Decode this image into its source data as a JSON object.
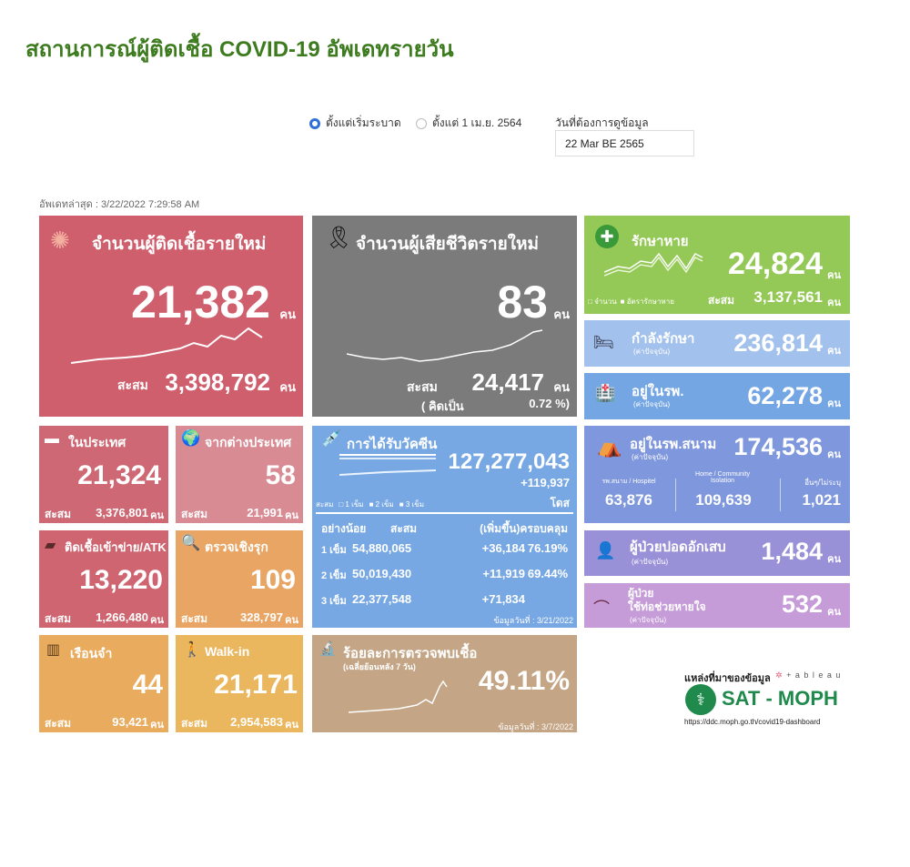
{
  "title": "สถานการณ์ผู้ติดเชื้อ COVID-19 อัพเดทรายวัน",
  "filters": {
    "radio1": "ตั้งแต่เริ่มระบาด",
    "radio2": "ตั้งแต่ 1 เม.ย. 2564",
    "radio_selected": "radio1",
    "date_label": "วันที่ต้องการดูข้อมูล",
    "date_value": "22 Mar BE 2565"
  },
  "updated": "อัพเดทล่าสุด : 3/22/2022 7:29:58 AM",
  "unit": "คน",
  "cum": "สะสม",
  "new_cases": {
    "label": "จำนวนผู้ติดเชื้อรายใหม่",
    "value": "21,382",
    "cum": "3,398,792",
    "color": "#cf5f6d"
  },
  "deaths": {
    "label": "จำนวนผู้เสียชีวิตรายใหม่",
    "value": "83",
    "cum": "24,417",
    "rate_label": "( คิดเป็น",
    "rate": "0.72 %)",
    "color": "#7b7b7b"
  },
  "domestic": {
    "label": "ในประเทศ",
    "value": "21,324",
    "cum": "3,376,801",
    "color": "#cd6874"
  },
  "abroad": {
    "label": "จากต่างประเทศ",
    "value": "58",
    "cum": "21,991",
    "color": "#d98b94"
  },
  "atk": {
    "label": "ติดเชื้อเข้าข่าย/ATK",
    "value": "13,220",
    "cum": "1,266,480",
    "color": "#cf6570"
  },
  "proactive": {
    "label": "ตรวจเชิงรุก",
    "value": "109",
    "cum": "328,797",
    "color": "#e9a563"
  },
  "prison": {
    "label": "เรือนจำ",
    "value": "44",
    "cum": "93,421",
    "color": "#e9ac5e"
  },
  "walkin": {
    "label": "Walk-in",
    "value": "21,171",
    "cum": "2,954,583",
    "color": "#eab65e"
  },
  "vaccine": {
    "label": "การได้รับวัคซีน",
    "total": "127,277,043",
    "added": "+119,937",
    "unit": "โดส",
    "legend": [
      "สะสม",
      "1 เข็ม",
      "2 เข็ม",
      "3 เข็ม"
    ],
    "headers": [
      "อย่างน้อย",
      "สะสม",
      "(เพิ่มขึ้น)",
      "ครอบคลุม"
    ],
    "rows": [
      [
        "1 เข็ม",
        "54,880,065",
        "+36,184",
        "76.19%"
      ],
      [
        "2 เข็ม",
        "50,019,430",
        "+11,919",
        "69.44%"
      ],
      [
        "3 เข็ม",
        "22,377,548",
        "+71,834",
        ""
      ]
    ],
    "date": "ข้อมูลวันที่ : 3/21/2022",
    "color": "#77a8e3"
  },
  "positivity": {
    "label": "ร้อยละการตรวจพบเชื้อ",
    "sub": "(เฉลี่ยย้อนหลัง 7 วัน)",
    "value": "49.11%",
    "date": "ข้อมูลวันที่ : 3/7/2022",
    "color": "#c4a585"
  },
  "recovered": {
    "label": "รักษาหาย",
    "value": "24,824",
    "cum": "3,137,561",
    "legend": [
      "จำนวน",
      "อัตรารักษาหาย"
    ],
    "color": "#95c957"
  },
  "treating": {
    "label": "กำลังรักษา",
    "sub": "(ค่าปัจจุบัน)",
    "value": "236,814",
    "color": "#a2c1ec"
  },
  "hospital": {
    "label": "อยู่ในรพ.",
    "sub": "(ค่าปัจจุบัน)",
    "value": "62,278",
    "color": "#74a6e3"
  },
  "field": {
    "label": "อยู่ในรพ.สนาม",
    "sub": "(ค่าปัจจุบัน)",
    "value": "174,536",
    "cols": [
      {
        "label": "รพ.สนาม / Hospitel",
        "value": "63,876"
      },
      {
        "label": "Home / Community Isolation",
        "value": "109,639"
      },
      {
        "label": "อื่นๆ/ไม่ระบุ",
        "value": "1,021"
      }
    ],
    "color": "#7f97dc"
  },
  "pneumonia": {
    "label": "ผู้ป่วยปอดอักเสบ",
    "sub": "(ค่าปัจจุบัน)",
    "value": "1,484",
    "color": "#9991d8"
  },
  "ventilator": {
    "label1": "ผู้ป่วย",
    "label2": "ใช้ท่อช่วยหายใจ",
    "sub": "(ค่าปัจจุบัน)",
    "value": "532",
    "color": "#c59bd8"
  },
  "source": {
    "label": "แหล่งที่มาของข้อมูล",
    "tableau": "+ a b l e a u",
    "brand": "SAT - MOPH",
    "url": "https://ddc.moph.go.th/covid19-dashboard"
  }
}
